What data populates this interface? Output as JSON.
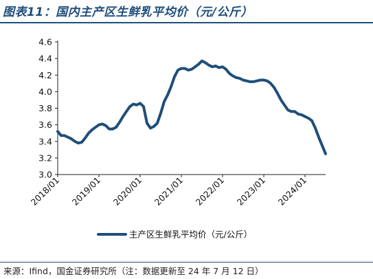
{
  "figure": {
    "title": "图表11：国内主产区生鲜乳平均价（元/公斤）",
    "source": "来源：Ifind，国金证券研究所（注：数据更新至 24 年 7 月 12 日）"
  },
  "chart_data": {
    "type": "line",
    "title": "",
    "xlabel": "",
    "ylabel": "",
    "ylim": [
      3.0,
      4.6
    ],
    "yticks": [
      "3.0",
      "3.2",
      "3.4",
      "3.6",
      "3.8",
      "4.0",
      "4.2",
      "4.4",
      "4.6"
    ],
    "xticks": [
      "2018/01",
      "2019/01",
      "2020/01",
      "2021/01",
      "2022/01",
      "2023/01",
      "2024/01"
    ],
    "xlim": [
      "2018-01",
      "2024-07"
    ],
    "grid": false,
    "legend_position": "bottom-center",
    "line_color": "#1f4e79",
    "series": [
      {
        "name": "主产区生鲜乳平均价（元/公斤）",
        "points": [
          [
            "2018-01",
            3.52
          ],
          [
            "2018-02",
            3.47
          ],
          [
            "2018-03",
            3.47
          ],
          [
            "2018-04",
            3.45
          ],
          [
            "2018-05",
            3.43
          ],
          [
            "2018-06",
            3.4
          ],
          [
            "2018-07",
            3.38
          ],
          [
            "2018-08",
            3.39
          ],
          [
            "2018-09",
            3.44
          ],
          [
            "2018-10",
            3.5
          ],
          [
            "2018-11",
            3.54
          ],
          [
            "2018-12",
            3.57
          ],
          [
            "2019-01",
            3.6
          ],
          [
            "2019-02",
            3.61
          ],
          [
            "2019-03",
            3.59
          ],
          [
            "2019-04",
            3.55
          ],
          [
            "2019-05",
            3.55
          ],
          [
            "2019-06",
            3.57
          ],
          [
            "2019-07",
            3.63
          ],
          [
            "2019-08",
            3.7
          ],
          [
            "2019-09",
            3.76
          ],
          [
            "2019-10",
            3.82
          ],
          [
            "2019-11",
            3.85
          ],
          [
            "2019-12",
            3.84
          ],
          [
            "2020-01",
            3.86
          ],
          [
            "2020-02",
            3.82
          ],
          [
            "2020-03",
            3.62
          ],
          [
            "2020-04",
            3.56
          ],
          [
            "2020-05",
            3.58
          ],
          [
            "2020-06",
            3.62
          ],
          [
            "2020-07",
            3.74
          ],
          [
            "2020-08",
            3.88
          ],
          [
            "2020-09",
            3.96
          ],
          [
            "2020-10",
            4.06
          ],
          [
            "2020-11",
            4.18
          ],
          [
            "2020-12",
            4.26
          ],
          [
            "2021-01",
            4.28
          ],
          [
            "2021-02",
            4.28
          ],
          [
            "2021-03",
            4.26
          ],
          [
            "2021-04",
            4.27
          ],
          [
            "2021-05",
            4.3
          ],
          [
            "2021-06",
            4.33
          ],
          [
            "2021-07",
            4.37
          ],
          [
            "2021-08",
            4.35
          ],
          [
            "2021-09",
            4.32
          ],
          [
            "2021-10",
            4.3
          ],
          [
            "2021-11",
            4.31
          ],
          [
            "2021-12",
            4.29
          ],
          [
            "2022-01",
            4.3
          ],
          [
            "2022-02",
            4.27
          ],
          [
            "2022-03",
            4.22
          ],
          [
            "2022-04",
            4.19
          ],
          [
            "2022-05",
            4.17
          ],
          [
            "2022-06",
            4.16
          ],
          [
            "2022-07",
            4.14
          ],
          [
            "2022-08",
            4.13
          ],
          [
            "2022-09",
            4.12
          ],
          [
            "2022-10",
            4.12
          ],
          [
            "2022-11",
            4.13
          ],
          [
            "2022-12",
            4.14
          ],
          [
            "2023-01",
            4.14
          ],
          [
            "2023-02",
            4.13
          ],
          [
            "2023-03",
            4.1
          ],
          [
            "2023-04",
            4.05
          ],
          [
            "2023-05",
            3.98
          ],
          [
            "2023-06",
            3.9
          ],
          [
            "2023-07",
            3.84
          ],
          [
            "2023-08",
            3.78
          ],
          [
            "2023-09",
            3.76
          ],
          [
            "2023-10",
            3.76
          ],
          [
            "2023-11",
            3.73
          ],
          [
            "2023-12",
            3.72
          ],
          [
            "2024-01",
            3.7
          ],
          [
            "2024-02",
            3.68
          ],
          [
            "2024-03",
            3.65
          ],
          [
            "2024-04",
            3.56
          ],
          [
            "2024-05",
            3.45
          ],
          [
            "2024-06",
            3.35
          ],
          [
            "2024-07",
            3.25
          ]
        ]
      }
    ]
  }
}
